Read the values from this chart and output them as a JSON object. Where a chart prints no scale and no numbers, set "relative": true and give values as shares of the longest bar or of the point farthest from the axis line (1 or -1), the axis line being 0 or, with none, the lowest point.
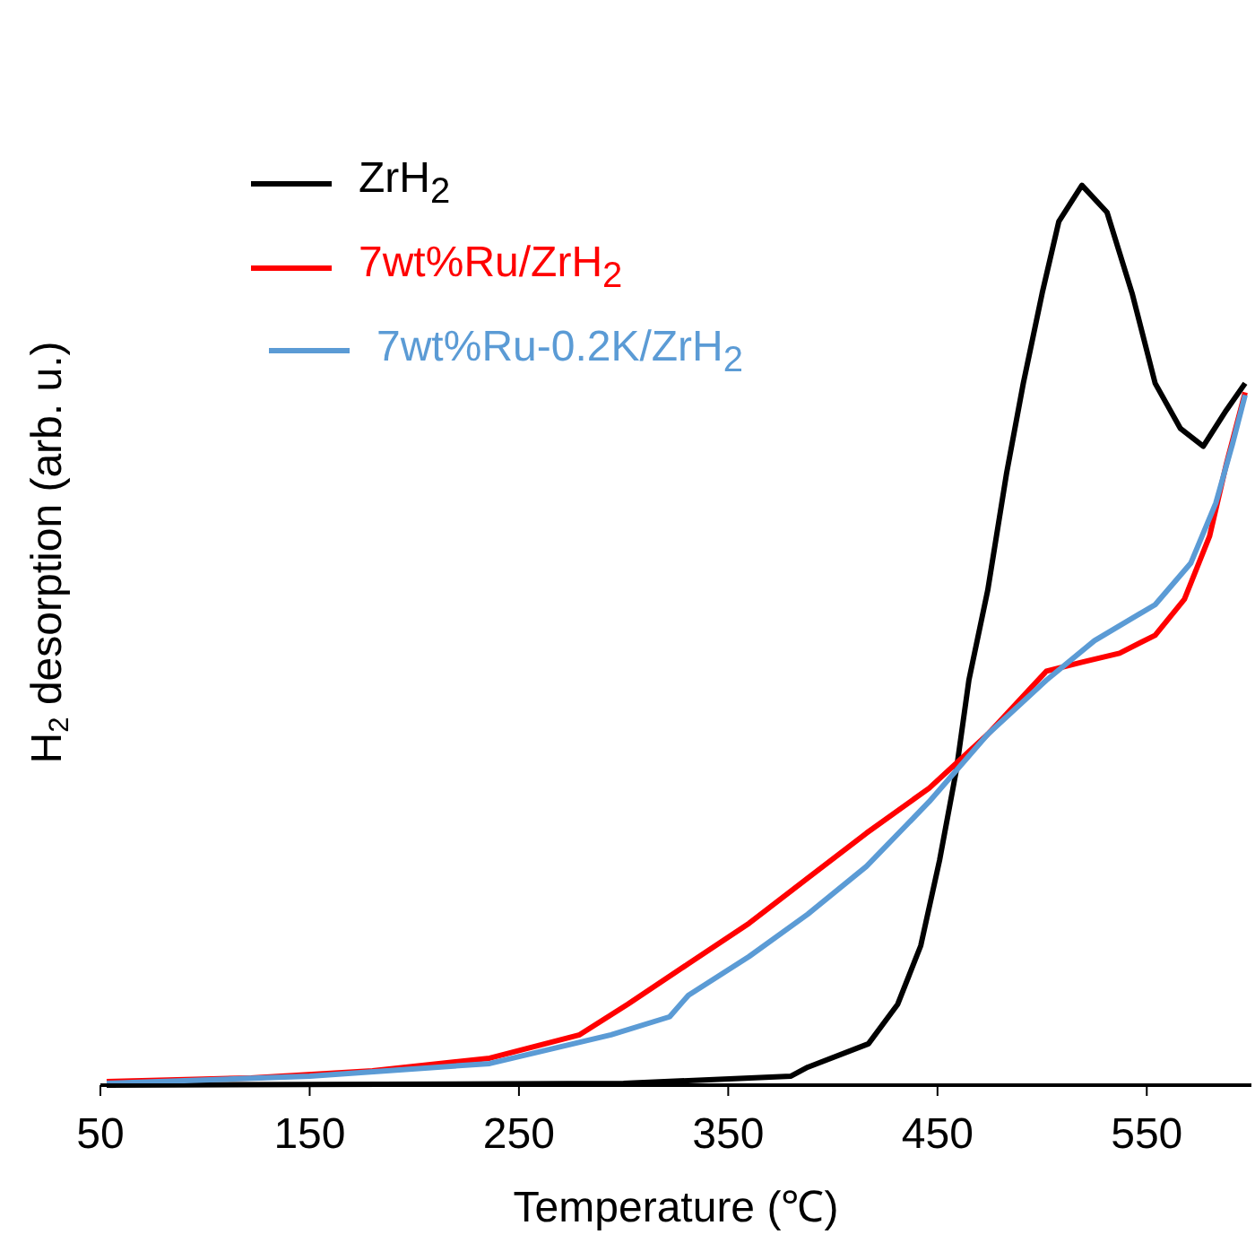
{
  "chart_data": {
    "type": "line",
    "relative": true,
    "xlabel": "Temperature (℃)",
    "ylabel": "H$_{2}$ desorption (arb. u.)",
    "xlim": [
      50,
      600
    ],
    "xticks": [
      50,
      150,
      250,
      350,
      450,
      550
    ],
    "legend": "top left",
    "series": [
      {
        "name": "ZrH$_{2}$",
        "color": "#000000",
        "x": [
          53,
          300,
          380,
          388,
          417,
          431,
          442,
          451,
          459,
          465,
          474,
          483,
          491,
          500,
          508,
          519,
          531,
          543,
          554,
          566,
          577,
          588,
          597
        ],
        "values": [
          0,
          0.002,
          0.01,
          0.02,
          0.046,
          0.09,
          0.155,
          0.25,
          0.35,
          0.45,
          0.55,
          0.68,
          0.78,
          0.88,
          0.96,
          1,
          0.97,
          0.88,
          0.78,
          0.73,
          0.71,
          0.75,
          0.78
        ]
      },
      {
        "name": "7wt%Ru/ZrH$_{2}$",
        "color": "#ff0000",
        "x": [
          53,
          122,
          180,
          236,
          279,
          302,
          331,
          360,
          388,
          416,
          446,
          474,
          502,
          519,
          537,
          554,
          568,
          580,
          588,
          597
        ],
        "values": [
          0.004,
          0.008,
          0.016,
          0.03,
          0.056,
          0.09,
          0.135,
          0.18,
          0.23,
          0.28,
          0.33,
          0.39,
          0.46,
          0.47,
          0.48,
          0.5,
          0.54,
          0.61,
          0.69,
          0.77
        ]
      },
      {
        "name": "7wt%Ru-0.2K/ZrH$_{2}$",
        "color": "#5b9bd5",
        "x": [
          53,
          150,
          236,
          294,
          322,
          331,
          360,
          388,
          416,
          446,
          474,
          502,
          525,
          554,
          571,
          583,
          591,
          597
        ],
        "values": [
          0.002,
          0.01,
          0.024,
          0.056,
          0.076,
          0.1,
          0.143,
          0.19,
          0.243,
          0.315,
          0.39,
          0.45,
          0.494,
          0.534,
          0.58,
          0.647,
          0.713,
          0.767
        ]
      }
    ]
  }
}
